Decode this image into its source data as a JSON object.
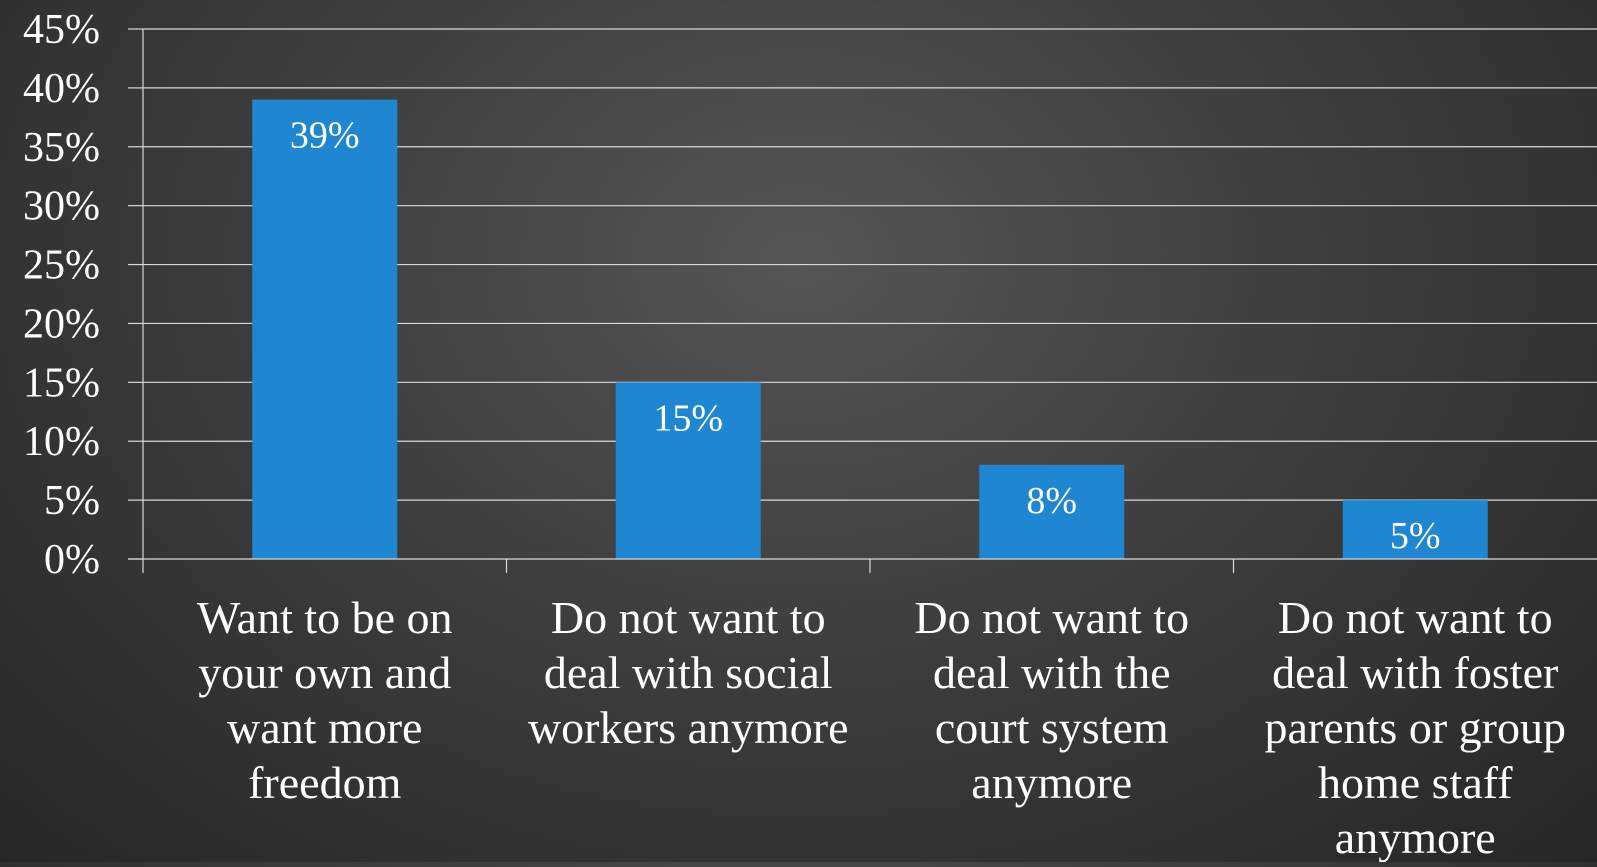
{
  "chart_data": {
    "type": "bar",
    "title": "",
    "xlabel": "",
    "ylabel": "",
    "ylim": [
      0,
      45
    ],
    "yticks": [
      0,
      5,
      10,
      15,
      20,
      25,
      30,
      35,
      40,
      45
    ],
    "ytick_format": "percent",
    "grid": true,
    "legend": "none",
    "categories": [
      [
        "Want to be on",
        "your own and",
        "want more",
        "freedom"
      ],
      [
        "Do not want to",
        "deal with social",
        "workers anymore"
      ],
      [
        "Do not want to",
        "deal with the",
        "court system",
        "anymore"
      ],
      [
        "Do not want to",
        "deal with foster",
        "parents or group",
        "home staff",
        "anymore"
      ]
    ],
    "values": [
      39,
      15,
      8,
      5
    ],
    "data_labels": [
      "39%",
      "15%",
      "8%",
      "5%"
    ],
    "colors": {
      "bar": "#1f86d2",
      "grid": "#d8d8d8",
      "text": "#ffffff",
      "background": "#3c3c3c"
    }
  }
}
